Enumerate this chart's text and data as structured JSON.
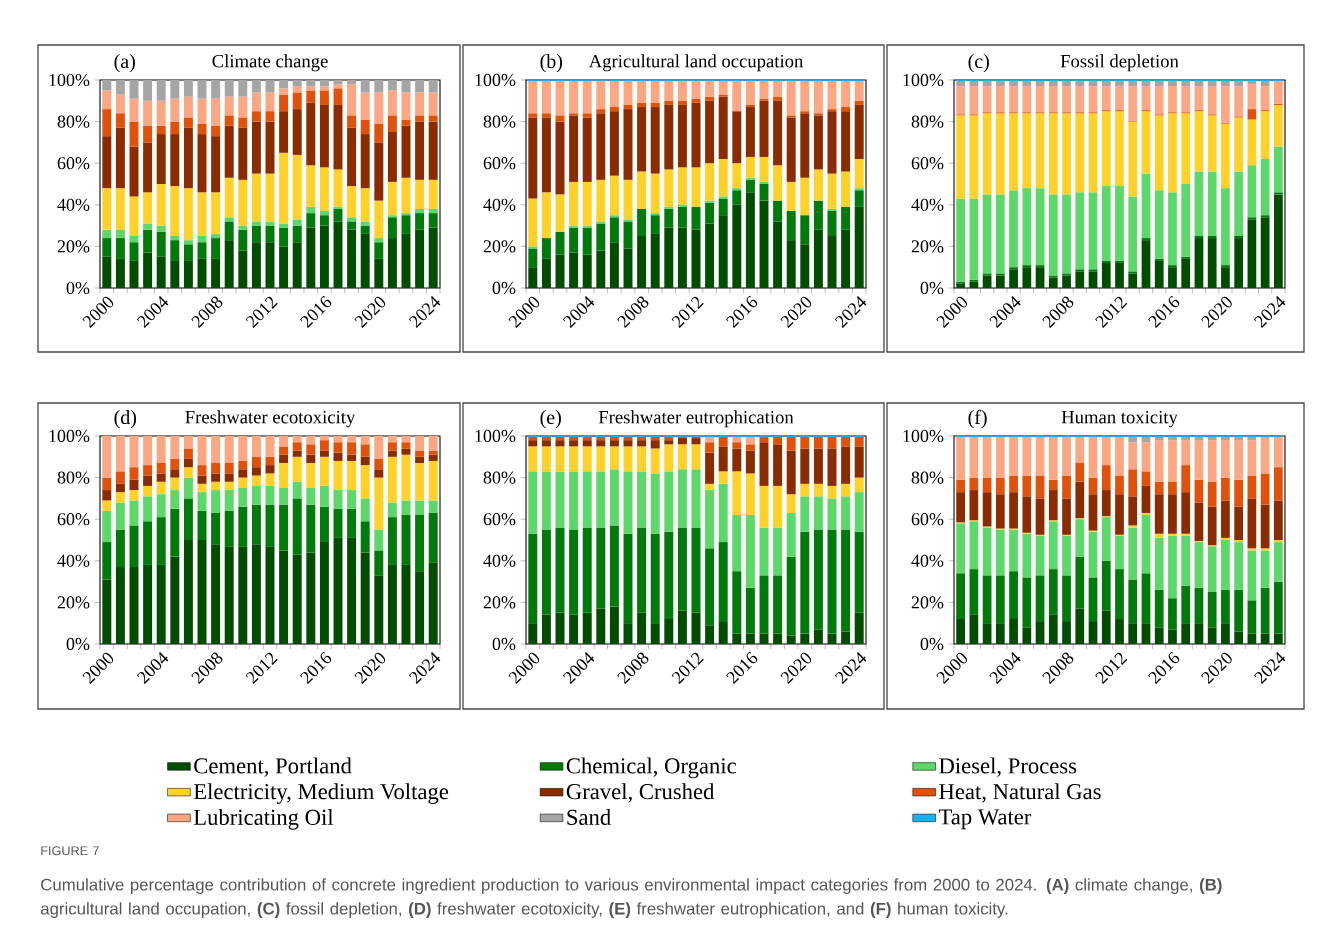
{
  "chart_data": [
    {
      "type": "bar",
      "stacked": true,
      "title": "Climate change",
      "annotations": [
        "(a)",
        "FIGURE 7",
        "Cumulative percentage contribution of concrete ingredient production to various environmental impact categories from 2000 to 2024. **(A)** climate change, **(B)** agricultural land occupation, **(C)** fossil depletion, **(D)** freshwater ecotoxicity, **(E)** freshwater eutrophication, and **(F)** human toxicity."
      ],
      "categories": [
        "2000",
        null,
        null,
        null,
        "2004",
        null,
        null,
        null,
        "2008",
        null,
        null,
        null,
        "2012",
        null,
        null,
        null,
        "2016",
        null,
        null,
        null,
        "2020",
        null,
        null,
        null,
        "2024"
      ],
      "ylim": [
        0,
        100
      ],
      "yticks": [
        {
          "value": 0,
          "label": "0%"
        },
        {
          "value": 20,
          "label": "20%"
        },
        {
          "value": 40,
          "label": "40%"
        },
        {
          "value": 60,
          "label": "60%"
        },
        {
          "value": 80,
          "label": "80%"
        },
        {
          "value": 100,
          "label": "100%"
        }
      ],
      "series": [
        {
          "color": "#004d00",
          "values": [
            15,
            14,
            13,
            17,
            15,
            13,
            13,
            14,
            14,
            23,
            18,
            22,
            22,
            20,
            22,
            29,
            30,
            32,
            28,
            26,
            14,
            24,
            26,
            28,
            29
          ]
        },
        {
          "color": "#007a0b",
          "values": [
            9,
            10,
            9,
            11,
            12,
            10,
            8,
            8,
            10,
            9,
            10,
            8,
            8,
            9,
            8,
            7,
            5,
            6,
            4,
            4,
            8,
            10,
            9,
            8,
            7
          ]
        },
        {
          "color": "#5cd86a",
          "values": [
            4,
            4,
            3,
            3,
            3,
            2,
            2,
            3,
            2,
            2,
            2,
            2,
            2,
            2,
            3,
            3,
            2,
            1,
            2,
            2,
            2,
            1,
            1,
            2,
            2
          ]
        },
        {
          "color": "#ffd129",
          "values": [
            20,
            20,
            19,
            15,
            20,
            24,
            25,
            21,
            20,
            19,
            22,
            23,
            23,
            34,
            31,
            20,
            21,
            18,
            15,
            16,
            18,
            16,
            17,
            14,
            14
          ]
        },
        {
          "color": "#8b2c00",
          "values": [
            25,
            29,
            24,
            24,
            24,
            25,
            29,
            28,
            27,
            25,
            25,
            25,
            25,
            20,
            22,
            30,
            30,
            31,
            28,
            26,
            28,
            24,
            25,
            28,
            28
          ]
        },
        {
          "color": "#e0520c",
          "values": [
            13,
            7,
            12,
            8,
            4,
            6,
            5,
            5,
            5,
            5,
            5,
            5,
            5,
            8,
            8,
            6,
            7,
            8,
            6,
            7,
            9,
            8,
            3,
            3,
            3
          ]
        },
        {
          "color": "#fba784",
          "values": [
            9,
            9,
            11,
            12,
            12,
            11,
            10,
            12,
            13,
            9,
            10,
            9,
            9,
            3,
            3,
            2,
            2,
            2,
            15,
            13,
            15,
            12,
            13,
            11,
            11
          ]
        },
        {
          "color": "#a5a5a5",
          "values": [
            5,
            7,
            9,
            10,
            10,
            9,
            8,
            9,
            9,
            8,
            8,
            6,
            6,
            4,
            3,
            3,
            3,
            2,
            2,
            6,
            6,
            5,
            6,
            6,
            6
          ]
        }
      ]
    },
    {
      "type": "bar",
      "stacked": true,
      "title": "Agricultural land occupation",
      "annotations": [
        "(b)"
      ],
      "categories": [
        "2000",
        null,
        null,
        null,
        "2004",
        null,
        null,
        null,
        "2008",
        null,
        null,
        null,
        "2012",
        null,
        null,
        null,
        "2016",
        null,
        null,
        null,
        "2020",
        null,
        null,
        null,
        "2024"
      ],
      "ylim": [
        0,
        100
      ],
      "yticks": [
        {
          "value": 0,
          "label": "0%"
        },
        {
          "value": 20,
          "label": "20%"
        },
        {
          "value": 40,
          "label": "40%"
        },
        {
          "value": 60,
          "label": "60%"
        },
        {
          "value": 80,
          "label": "80%"
        },
        {
          "value": 100,
          "label": "100%"
        }
      ],
      "series": [
        {
          "color": "#004d00",
          "values": [
            10,
            14,
            16,
            17,
            16,
            18,
            22,
            19,
            25,
            26,
            29,
            29,
            28,
            31,
            35,
            40,
            46,
            42,
            32,
            23,
            21,
            28,
            25,
            28,
            39
          ]
        },
        {
          "color": "#007a0b",
          "values": [
            9,
            10,
            11,
            12,
            13,
            13,
            12,
            13,
            13,
            9,
            9,
            10,
            11,
            10,
            8,
            7,
            6,
            8,
            10,
            14,
            14,
            14,
            12,
            11,
            8
          ]
        },
        {
          "color": "#5cd86a",
          "values": [
            1,
            null,
            null,
            1,
            1,
            1,
            1,
            1,
            null,
            1,
            1,
            1,
            null,
            1,
            1,
            1,
            1,
            1,
            null,
            null,
            null,
            null,
            1,
            null,
            1
          ]
        },
        {
          "color": "#ffd129",
          "values": [
            23,
            22,
            18,
            21,
            21,
            20,
            19,
            19,
            18,
            19,
            18,
            18,
            19,
            18,
            18,
            12,
            10,
            12,
            17,
            14,
            18,
            15,
            17,
            17,
            14
          ]
        },
        {
          "color": "#8b2c00",
          "values": [
            39,
            36,
            35,
            32,
            31,
            32,
            31,
            34,
            31,
            32,
            31,
            30,
            31,
            30,
            30,
            25,
            24,
            27,
            31,
            31,
            31,
            26,
            30,
            29,
            26
          ]
        },
        {
          "color": "#e0520c",
          "values": [
            2,
            2,
            3,
            1,
            2,
            2,
            2,
            2,
            2,
            2,
            2,
            2,
            2,
            2,
            1,
            null,
            1,
            1,
            2,
            1,
            1,
            1,
            1,
            2,
            2
          ]
        },
        {
          "color": "#fba784",
          "values": [
            15.5,
            15.5,
            16.5,
            15.5,
            15.5,
            13.5,
            12.5,
            11.5,
            10.5,
            10.5,
            9.5,
            9.5,
            8.5,
            7.5,
            6.5,
            14.5,
            11.5,
            8.5,
            7.5,
            16.5,
            14.5,
            15.5,
            13.5,
            12.5,
            9.5
          ]
        },
        {
          "color": "#12b4ee",
          "values": [
            0.5,
            0.5,
            0.5,
            0.5,
            0.5,
            0.5,
            0.5,
            0.5,
            0.5,
            0.5,
            0.5,
            0.5,
            0.5,
            0.5,
            0.5,
            0.5,
            0.5,
            0.5,
            0.5,
            0.5,
            0.5,
            0.5,
            0.5,
            0.5,
            0.5
          ]
        }
      ]
    },
    {
      "type": "bar",
      "stacked": true,
      "title": "Fossil depletion",
      "annotations": [
        "(c)"
      ],
      "categories": [
        "2000",
        null,
        null,
        null,
        "2004",
        null,
        null,
        null,
        "2008",
        null,
        null,
        null,
        "2012",
        null,
        null,
        null,
        "2016",
        null,
        null,
        null,
        "2020",
        null,
        null,
        null,
        "2024"
      ],
      "ylim": [
        0,
        100
      ],
      "yticks": [
        {
          "value": 0,
          "label": "0%"
        },
        {
          "value": 20,
          "label": "20%"
        },
        {
          "value": 40,
          "label": "40%"
        },
        {
          "value": 60,
          "label": "60%"
        },
        {
          "value": 80,
          "label": "80%"
        },
        {
          "value": 100,
          "label": "100%"
        }
      ],
      "series": [
        {
          "color": "#004d00",
          "values": [
            2,
            3,
            6,
            6,
            9,
            10,
            10,
            5,
            6,
            8,
            8,
            12,
            12,
            7,
            23,
            13,
            10,
            14,
            24,
            24,
            10,
            24,
            33,
            34,
            45
          ]
        },
        {
          "color": "#007a0b",
          "values": [
            1,
            1,
            1,
            1,
            1,
            1,
            1,
            1,
            1,
            1,
            1,
            1,
            1,
            1,
            1,
            1,
            1,
            1,
            1,
            1,
            1,
            1,
            1,
            1,
            1
          ]
        },
        {
          "color": "#5cd86a",
          "values": [
            40,
            39,
            38,
            38,
            37,
            37,
            37,
            39,
            38,
            37,
            37,
            36,
            36,
            36,
            31,
            33,
            35,
            35,
            31,
            31,
            37,
            31,
            25,
            27,
            22
          ]
        },
        {
          "color": "#ffd129",
          "values": [
            40,
            40,
            39,
            39,
            37,
            36,
            36,
            39,
            39,
            38,
            38,
            36,
            36,
            36,
            30,
            36,
            38,
            34,
            29,
            27,
            31,
            26,
            22,
            23,
            20
          ]
        },
        {
          "color": "#e0520c",
          "values": [
            0.5,
            0.5,
            0.5,
            0.5,
            0.5,
            0.5,
            0.5,
            0.5,
            0.5,
            0.5,
            0.5,
            0.5,
            0.5,
            0.5,
            0.5,
            0.5,
            0.5,
            0.5,
            0.5,
            0.5,
            0.5,
            0.5,
            5,
            0.5,
            0.5
          ]
        },
        {
          "color": "#fba784",
          "values": [
            13.5,
            13.5,
            12.5,
            12.5,
            12.5,
            12.5,
            12.5,
            12.5,
            12.5,
            12.5,
            12.5,
            11.5,
            11.5,
            16.5,
            11.5,
            13.5,
            12.5,
            12.5,
            11.5,
            13.5,
            17.5,
            14.5,
            12,
            11.5,
            11
          ]
        },
        {
          "color": "#a5a5a5",
          "values": [
            2.5,
            2.5,
            2.5,
            2.5,
            2.5,
            2.5,
            2.5,
            2.5,
            2.5,
            2.5,
            2.5,
            2.5,
            2.5,
            2.5,
            2.5,
            2.5,
            2.5,
            2.5,
            2.5,
            2.5,
            2.5,
            2.5,
            1.5,
            2.5,
            null
          ]
        },
        {
          "color": "#12b4ee",
          "values": [
            0.5,
            0.5,
            0.5,
            0.5,
            0.5,
            0.5,
            0.5,
            0.5,
            0.5,
            0.5,
            0.5,
            0.5,
            0.5,
            0.5,
            0.5,
            0.5,
            0.5,
            0.5,
            0.5,
            0.5,
            0.5,
            0.5,
            0.5,
            0.5,
            0.5
          ]
        }
      ]
    },
    {
      "type": "bar",
      "stacked": true,
      "title": "Freshwater ecotoxicity",
      "annotations": [
        "(d)"
      ],
      "categories": [
        "2000",
        null,
        null,
        null,
        "2004",
        null,
        null,
        null,
        "2008",
        null,
        null,
        null,
        "2012",
        null,
        null,
        null,
        "2016",
        null,
        null,
        null,
        "2020",
        null,
        null,
        null,
        "2024"
      ],
      "ylim": [
        0,
        100
      ],
      "yticks": [
        {
          "value": 0,
          "label": "0%"
        },
        {
          "value": 20,
          "label": "20%"
        },
        {
          "value": 40,
          "label": "40%"
        },
        {
          "value": 60,
          "label": "60%"
        },
        {
          "value": 80,
          "label": "80%"
        },
        {
          "value": 100,
          "label": "100%"
        }
      ],
      "series": [
        {
          "color": "#004d00",
          "values": [
            31,
            37,
            37,
            38,
            38,
            42,
            50,
            50,
            48,
            47,
            47,
            48,
            47,
            45,
            43,
            44,
            49,
            51,
            51,
            44,
            33,
            38,
            38,
            35,
            39
          ]
        },
        {
          "color": "#007a0b",
          "values": [
            18,
            18,
            20,
            21,
            23,
            23,
            20,
            14,
            15,
            17,
            19,
            19,
            20,
            22,
            27,
            23,
            17,
            14,
            14,
            15,
            12,
            23,
            24,
            27,
            24
          ]
        },
        {
          "color": "#5cd86a",
          "values": [
            15,
            13,
            12,
            12,
            11,
            9,
            10,
            9,
            11,
            10,
            9,
            9,
            9,
            8,
            8,
            8,
            10,
            9,
            9,
            11,
            10,
            7,
            7,
            7,
            6
          ]
        },
        {
          "color": "#ffd129",
          "values": [
            5,
            5,
            5,
            5,
            6,
            6,
            5,
            4,
            4,
            4,
            5,
            5,
            6,
            12,
            12,
            12,
            14,
            14,
            14,
            16,
            25,
            22,
            22,
            18,
            19
          ]
        },
        {
          "color": "#8b2c00",
          "values": [
            5,
            4,
            5,
            5,
            4,
            4,
            4,
            4,
            4,
            4,
            4,
            4,
            4,
            4,
            3,
            4,
            3,
            4,
            3,
            4,
            4,
            3,
            3,
            3,
            3
          ]
        },
        {
          "color": "#e0520c",
          "values": [
            6,
            6,
            6,
            5,
            5,
            5,
            5,
            5,
            5,
            5,
            4,
            5,
            4,
            4,
            4,
            5,
            5,
            5,
            6,
            6,
            5,
            4,
            3,
            3,
            2
          ]
        },
        {
          "color": "#fba784",
          "values": [
            20,
            17,
            15,
            14,
            13,
            11,
            6,
            14,
            13,
            13,
            12,
            10,
            10,
            5,
            3,
            4,
            2,
            3,
            3,
            4,
            11,
            3,
            3,
            7,
            7
          ]
        }
      ]
    },
    {
      "type": "bar",
      "stacked": true,
      "title": "Freshwater eutrophication",
      "annotations": [
        "(e)"
      ],
      "categories": [
        "2000",
        null,
        null,
        null,
        "2004",
        null,
        null,
        null,
        "2008",
        null,
        null,
        null,
        "2012",
        null,
        null,
        null,
        "2016",
        null,
        null,
        null,
        "2020",
        null,
        null,
        null,
        "2024"
      ],
      "ylim": [
        0,
        100
      ],
      "yticks": [
        {
          "value": 0,
          "label": "0%"
        },
        {
          "value": 20,
          "label": "20%"
        },
        {
          "value": 40,
          "label": "40%"
        },
        {
          "value": 60,
          "label": "60%"
        },
        {
          "value": 80,
          "label": "80%"
        },
        {
          "value": 100,
          "label": "100%"
        }
      ],
      "series": [
        {
          "color": "#004d00",
          "values": [
            10,
            14,
            15,
            14,
            15,
            17,
            18,
            10,
            15,
            10,
            12,
            16,
            15,
            9,
            11,
            5,
            5,
            5,
            5,
            4,
            5,
            7,
            5,
            6,
            15
          ]
        },
        {
          "color": "#007a0b",
          "values": [
            43,
            41,
            41,
            41,
            41,
            39,
            39,
            43,
            41,
            43,
            42,
            40,
            41,
            37,
            38,
            30,
            22,
            28,
            28,
            38,
            49,
            48,
            50,
            49,
            39
          ]
        },
        {
          "color": "#5cd86a",
          "values": [
            30,
            28,
            27,
            28,
            27,
            27,
            27,
            30,
            27,
            29,
            29,
            28,
            28,
            28,
            28,
            27,
            35,
            23,
            23,
            21,
            17,
            16,
            15,
            16,
            19
          ]
        },
        {
          "color": "#ffd129",
          "values": [
            12,
            12,
            12,
            12,
            12,
            12,
            11,
            12,
            12,
            12,
            13,
            12,
            12,
            3,
            6,
            21,
            20,
            20,
            20,
            9,
            6,
            6,
            6,
            6,
            7
          ]
        },
        {
          "color": "#8b2c00",
          "values": [
            3,
            3,
            3,
            3,
            3,
            3,
            3,
            3,
            3,
            4,
            2,
            3,
            3,
            15,
            12,
            11,
            11,
            21,
            20,
            21,
            17,
            17,
            18,
            18,
            15
          ]
        },
        {
          "color": "#e0520c",
          "values": [
            1.5,
            1.5,
            1.5,
            1.5,
            1.5,
            1.5,
            1.5,
            1.5,
            1.5,
            1.5,
            1.5,
            0.5,
            0.5,
            5,
            4.5,
            3,
            3,
            2.5,
            3.5,
            6.5,
            5.5,
            5.5,
            5.5,
            4.5,
            4.5
          ]
        },
        {
          "color": "#fba784",
          "values": [
            null,
            null,
            null,
            null,
            null,
            null,
            null,
            null,
            null,
            null,
            null,
            null,
            null,
            2.5,
            null,
            2.5,
            3.5,
            null,
            null,
            null,
            null,
            null,
            null,
            null,
            null
          ]
        },
        {
          "color": "#12b4ee",
          "values": [
            0.5,
            0.5,
            0.5,
            0.5,
            0.5,
            0.5,
            0.5,
            0.5,
            0.5,
            0.5,
            0.5,
            0.5,
            0.5,
            0.5,
            0.5,
            0.5,
            0.5,
            0.5,
            0.5,
            0.5,
            0.5,
            0.5,
            0.5,
            0.5,
            0.5
          ]
        }
      ]
    },
    {
      "type": "bar",
      "stacked": true,
      "title": "Human toxicity",
      "annotations": [
        "(f)"
      ],
      "legend": "bottom",
      "categories": [
        "2000",
        null,
        null,
        null,
        "2004",
        null,
        null,
        null,
        "2008",
        null,
        null,
        null,
        "2012",
        null,
        null,
        null,
        "2016",
        null,
        null,
        null,
        "2020",
        null,
        null,
        null,
        "2024"
      ],
      "ylim": [
        0,
        100
      ],
      "yticks": [
        {
          "value": 0,
          "label": "0%"
        },
        {
          "value": 20,
          "label": "20%"
        },
        {
          "value": 40,
          "label": "40%"
        },
        {
          "value": 60,
          "label": "60%"
        },
        {
          "value": 80,
          "label": "80%"
        },
        {
          "value": 100,
          "label": "100%"
        }
      ],
      "series": [
        {
          "name": "Cement, Portland",
          "color": "#004d00",
          "values": [
            12,
            14,
            10,
            10,
            12,
            8,
            11,
            14,
            11,
            17,
            11,
            16,
            12,
            10,
            10,
            8,
            7,
            10,
            10,
            8,
            10,
            6,
            5,
            5,
            5
          ]
        },
        {
          "name": "Chemical, Organic",
          "color": "#007a0b",
          "values": [
            22,
            22,
            23,
            23,
            23,
            24,
            22,
            22,
            22,
            25,
            21,
            24,
            24,
            21,
            24,
            18,
            15,
            18,
            17,
            17,
            16,
            20,
            16,
            22,
            25
          ]
        },
        {
          "name": "Diesel, Process",
          "color": "#5cd86a",
          "values": [
            24,
            23,
            23,
            22,
            20,
            21,
            19,
            23,
            19,
            18,
            22,
            21,
            16,
            25,
            28,
            25,
            30,
            24,
            22,
            22,
            24,
            23,
            24,
            18,
            19
          ]
        },
        {
          "name": "Electricity, Medium Voltage",
          "color": "#ffd129",
          "values": [
            0.5,
            0.5,
            0.5,
            0.5,
            0.5,
            0.5,
            0.5,
            0.5,
            0.5,
            0.5,
            0.5,
            0.5,
            0.5,
            1,
            1,
            2,
            1,
            1,
            0.5,
            0.5,
            1,
            1,
            1,
            1,
            1
          ]
        },
        {
          "name": "Gravel, Crushed",
          "color": "#8b2c00",
          "values": [
            14.5,
            14.5,
            16.5,
            16.5,
            17.5,
            17.5,
            17.5,
            14.5,
            17.5,
            17.5,
            17.5,
            12.5,
            19.5,
            14,
            13,
            19,
            19,
            20,
            18.5,
            18.5,
            18,
            16,
            24,
            21,
            19
          ]
        },
        {
          "name": "Heat, Natural Gas",
          "color": "#e0520c",
          "values": [
            6,
            6,
            7,
            8,
            8,
            10,
            11,
            5,
            11,
            9,
            8,
            12,
            9,
            13,
            7,
            6,
            6,
            13,
            11,
            12,
            11,
            13,
            11,
            15,
            16
          ]
        },
        {
          "name": "Lubricating Oil",
          "color": "#fba784",
          "values": [
            20.5,
            19.5,
            19.5,
            19.5,
            18.5,
            18.5,
            18.5,
            20.5,
            18.5,
            12.5,
            19.5,
            13.5,
            18.5,
            13,
            14,
            20,
            20,
            12,
            19,
            20,
            18,
            19,
            17,
            17.5,
            14.5
          ]
        },
        {
          "name": "Sand",
          "color": "#a5a5a5",
          "values": [
            null,
            null,
            null,
            null,
            null,
            null,
            null,
            null,
            null,
            null,
            null,
            null,
            null,
            2.5,
            2.5,
            1.5,
            1.5,
            1.5,
            1.5,
            1.5,
            1.5,
            1.5,
            1.5,
            null,
            null
          ]
        },
        {
          "name": "Tap Water",
          "color": "#12b4ee",
          "values": [
            0.5,
            0.5,
            0.5,
            0.5,
            0.5,
            0.5,
            0.5,
            0.5,
            0.5,
            0.5,
            0.5,
            0.5,
            0.5,
            0.5,
            0.5,
            0.5,
            0.5,
            0.5,
            0.5,
            0.5,
            0.5,
            0.5,
            0.5,
            0.5,
            0.5
          ]
        }
      ]
    }
  ]
}
